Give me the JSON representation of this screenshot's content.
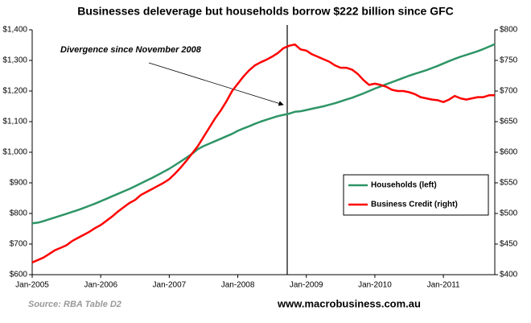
{
  "chart_data": {
    "type": "line",
    "title": "Businesses deleverage but households borrow $222 billion since GFC",
    "annotation": "Divergence since November 2008",
    "source": "Source: RBA Table D2",
    "website": "www.macrobusiness.com.au",
    "categories": [
      "Jan-2005",
      null,
      null,
      null,
      null,
      null,
      null,
      null,
      null,
      null,
      null,
      null,
      "Jan-2006",
      null,
      null,
      null,
      null,
      null,
      null,
      null,
      null,
      null,
      null,
      null,
      "Jan-2007",
      null,
      null,
      null,
      null,
      null,
      null,
      null,
      null,
      null,
      null,
      null,
      "Jan-2008",
      null,
      null,
      null,
      null,
      null,
      null,
      null,
      null,
      null,
      null,
      null,
      "Jan-2009",
      null,
      null,
      null,
      null,
      null,
      null,
      null,
      null,
      null,
      null,
      null,
      "Jan-2010",
      null,
      null,
      null,
      null,
      null,
      null,
      null,
      null,
      null,
      null,
      null,
      "Jan-2011",
      null,
      null,
      null,
      null,
      null,
      null,
      null,
      null,
      null
    ],
    "series": [
      {
        "name": "Households (left)",
        "color": "#2e9566",
        "values": [
          768,
          770,
          775,
          781,
          787,
          793,
          799,
          805,
          811,
          818,
          825,
          832,
          840,
          848,
          856,
          864,
          872,
          880,
          889,
          898,
          907,
          916,
          926,
          936,
          946,
          958,
          970,
          982,
          995,
          1010,
          1020,
          1028,
          1036,
          1044,
          1052,
          1060,
          1070,
          1078,
          1085,
          1093,
          1100,
          1106,
          1112,
          1118,
          1122,
          1126,
          1132,
          1134,
          1138,
          1142,
          1146,
          1150,
          1155,
          1160,
          1166,
          1172,
          1178,
          1185,
          1192,
          1200,
          1208,
          1215,
          1222,
          1229,
          1236,
          1243,
          1250,
          1256,
          1262,
          1268,
          1275,
          1282,
          1290,
          1298,
          1305,
          1312,
          1318,
          1324,
          1330,
          1337,
          1345,
          1353
        ]
      },
      {
        "name": "Business Credit (right)",
        "color": "#ff0000",
        "axis": "y2",
        "values": [
          420,
          424,
          428,
          434,
          440,
          444,
          448,
          455,
          460,
          465,
          470,
          476,
          481,
          488,
          495,
          503,
          510,
          517,
          522,
          530,
          535,
          540,
          545,
          550,
          556,
          565,
          575,
          586,
          598,
          610,
          625,
          640,
          655,
          668,
          683,
          700,
          712,
          724,
          734,
          742,
          747,
          751,
          756,
          762,
          770,
          774,
          776,
          768,
          766,
          760,
          756,
          752,
          748,
          742,
          738,
          738,
          735,
          728,
          718,
          710,
          712,
          710,
          707,
          702,
          700,
          700,
          698,
          695,
          690,
          688,
          686,
          685,
          682,
          686,
          692,
          688,
          686,
          688,
          690,
          690,
          693,
          693
        ]
      }
    ],
    "ylim": [
      600,
      1400
    ],
    "yticks": [
      {
        "value": 600,
        "label": "$600"
      },
      {
        "value": 700,
        "label": "$700"
      },
      {
        "value": 800,
        "label": "$800"
      },
      {
        "value": 900,
        "label": "$900"
      },
      {
        "value": 1000,
        "label": "$1,000"
      },
      {
        "value": 1100,
        "label": "$1,100"
      },
      {
        "value": 1200,
        "label": "$1,200"
      },
      {
        "value": 1300,
        "label": "$1,300"
      },
      {
        "value": 1400,
        "label": "$1,400"
      }
    ],
    "y2lim": [
      400,
      800
    ],
    "y2ticks": [
      {
        "value": 400,
        "label": "$400"
      },
      {
        "value": 450,
        "label": "$450"
      },
      {
        "value": 500,
        "label": "$500"
      },
      {
        "value": 550,
        "label": "$550"
      },
      {
        "value": 600,
        "label": "$600"
      },
      {
        "value": 650,
        "label": "$650"
      },
      {
        "value": 700,
        "label": "$700"
      },
      {
        "value": 750,
        "label": "$750"
      },
      {
        "value": 800,
        "label": "$800"
      }
    ],
    "grid": false,
    "legend": "lower right"
  }
}
